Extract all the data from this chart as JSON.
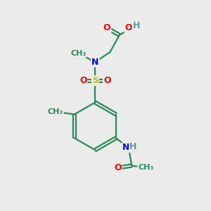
{
  "background_color": "#ebebeb",
  "atom_colors": {
    "C": "#2a8a5a",
    "N": "#0000ee",
    "O": "#ee0000",
    "S": "#ccbb00",
    "H": "#5a9a9a"
  },
  "bond_color": "#2a8a5a",
  "figsize": [
    3.0,
    3.0
  ],
  "dpi": 100,
  "xlim": [
    0,
    10
  ],
  "ylim": [
    0,
    10
  ]
}
